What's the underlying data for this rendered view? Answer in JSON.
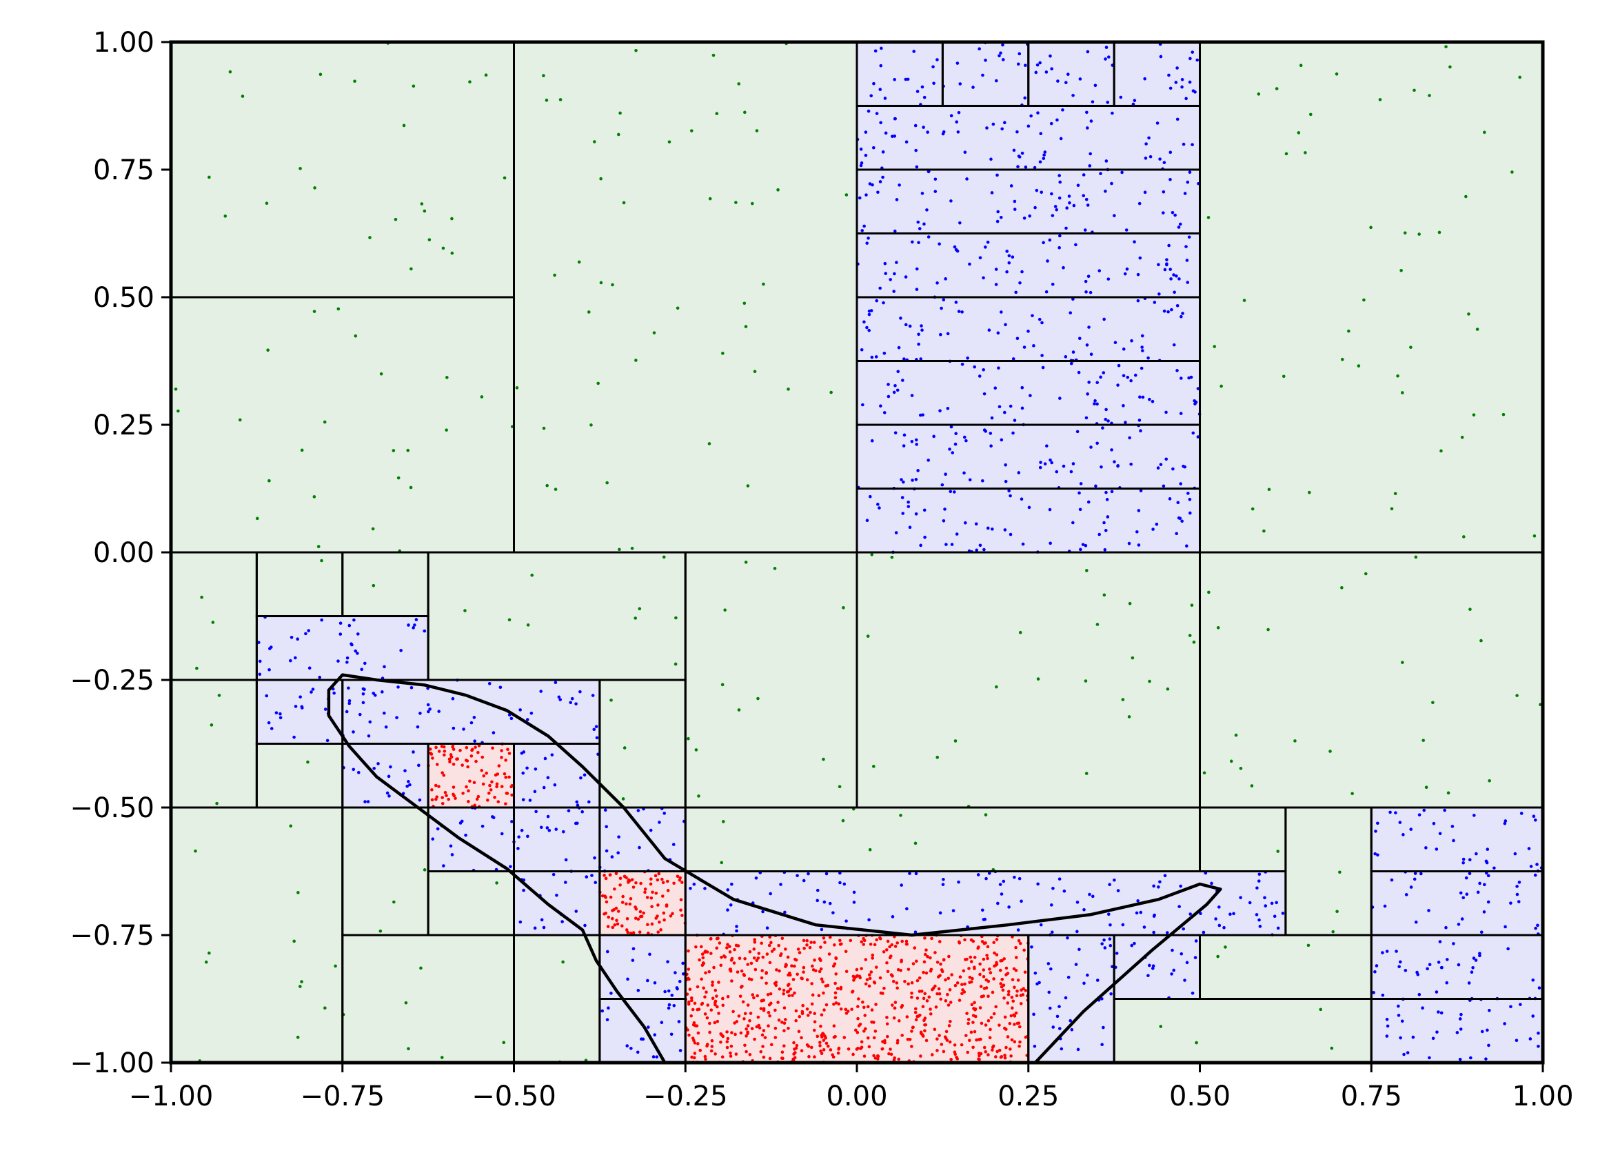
{
  "chart_data": {
    "type": "scatter",
    "title": "",
    "xlabel": "",
    "ylabel": "",
    "xlim": [
      -1.0,
      1.0
    ],
    "ylim": [
      -1.0,
      1.0
    ],
    "x_ticks": [
      "−1.00",
      "−0.75",
      "−0.50",
      "−0.25",
      "0.00",
      "0.25",
      "0.50",
      "0.75",
      "1.00"
    ],
    "y_ticks": [
      "−1.00",
      "−0.75",
      "−0.50",
      "−0.25",
      "0.00",
      "0.25",
      "0.50",
      "0.75",
      "1.00"
    ],
    "x_tick_values": [
      -1.0,
      -0.75,
      -0.5,
      -0.25,
      0.0,
      0.25,
      0.5,
      0.75,
      1.0
    ],
    "y_tick_values": [
      -1.0,
      -0.75,
      -0.5,
      -0.25,
      0.0,
      0.25,
      0.5,
      0.75,
      1.0
    ],
    "grid": false,
    "legend": "none",
    "colors": {
      "outside_fill": "#e4f0e4",
      "boundary_fill": "#e4e4fb",
      "inside_fill": "#fbe2e2",
      "outside_points": "#008000",
      "boundary_points": "#0000ff",
      "inside_points": "#ff0000",
      "cell_edges": "#000000",
      "contour": "#000000"
    },
    "cells": [
      {
        "x": [
          -1.0,
          -0.5
        ],
        "y": [
          0.5,
          1.0
        ],
        "state": "outside"
      },
      {
        "x": [
          -1.0,
          -0.5
        ],
        "y": [
          0.0,
          0.5
        ],
        "state": "outside"
      },
      {
        "x": [
          -0.5,
          0.0
        ],
        "y": [
          0.0,
          1.0
        ],
        "state": "outside"
      },
      {
        "x": [
          0.5,
          1.0
        ],
        "y": [
          0.0,
          1.0
        ],
        "state": "outside"
      },
      {
        "x": [
          0.0,
          0.5
        ],
        "y": [
          -0.5,
          0.0
        ],
        "state": "outside"
      },
      {
        "x": [
          0.5,
          1.0
        ],
        "y": [
          -0.5,
          0.0
        ],
        "state": "outside"
      },
      {
        "x": [
          -0.25,
          0.0
        ],
        "y": [
          -0.5,
          0.0
        ],
        "state": "outside"
      },
      {
        "x": [
          -1.0,
          -0.875
        ],
        "y": [
          -0.25,
          0.0
        ],
        "state": "outside"
      },
      {
        "x": [
          -1.0,
          -0.875
        ],
        "y": [
          -0.5,
          -0.25
        ],
        "state": "outside"
      },
      {
        "x": [
          -0.875,
          -0.75
        ],
        "y": [
          -0.125,
          0.0
        ],
        "state": "outside"
      },
      {
        "x": [
          -0.75,
          -0.625
        ],
        "y": [
          -0.125,
          0.0
        ],
        "state": "outside"
      },
      {
        "x": [
          -0.625,
          -0.25
        ],
        "y": [
          -0.25,
          0.0
        ],
        "state": "outside"
      },
      {
        "x": [
          -0.875,
          -0.75
        ],
        "y": [
          -0.5,
          -0.375
        ],
        "state": "outside"
      },
      {
        "x": [
          -0.375,
          -0.25
        ],
        "y": [
          -0.5,
          -0.25
        ],
        "state": "outside"
      },
      {
        "x": [
          -1.0,
          -0.75
        ],
        "y": [
          -1.0,
          -0.5
        ],
        "state": "outside"
      },
      {
        "x": [
          -0.75,
          -0.625
        ],
        "y": [
          -0.75,
          -0.5
        ],
        "state": "outside"
      },
      {
        "x": [
          -0.625,
          -0.5
        ],
        "y": [
          -0.75,
          -0.625
        ],
        "state": "outside"
      },
      {
        "x": [
          -0.75,
          -0.5
        ],
        "y": [
          -1.0,
          -0.75
        ],
        "state": "outside"
      },
      {
        "x": [
          -0.5,
          -0.375
        ],
        "y": [
          -1.0,
          -0.75
        ],
        "state": "outside"
      },
      {
        "x": [
          -0.25,
          0.5
        ],
        "y": [
          -0.625,
          -0.5
        ],
        "state": "outside"
      },
      {
        "x": [
          0.5,
          0.625
        ],
        "y": [
          -0.625,
          -0.5
        ],
        "state": "outside"
      },
      {
        "x": [
          0.625,
          0.75
        ],
        "y": [
          -0.75,
          -0.5
        ],
        "state": "outside"
      },
      {
        "x": [
          0.375,
          0.75
        ],
        "y": [
          -1.0,
          -0.875
        ],
        "state": "outside"
      },
      {
        "x": [
          0.5,
          0.75
        ],
        "y": [
          -0.875,
          -0.75
        ],
        "state": "outside"
      },
      {
        "x": [
          0.0,
          0.125
        ],
        "y": [
          0.875,
          1.0
        ],
        "state": "boundary"
      },
      {
        "x": [
          0.125,
          0.25
        ],
        "y": [
          0.875,
          1.0
        ],
        "state": "boundary"
      },
      {
        "x": [
          0.25,
          0.375
        ],
        "y": [
          0.875,
          1.0
        ],
        "state": "boundary"
      },
      {
        "x": [
          0.375,
          0.5
        ],
        "y": [
          0.875,
          1.0
        ],
        "state": "boundary"
      },
      {
        "x": [
          0.0,
          0.5
        ],
        "y": [
          0.75,
          0.875
        ],
        "state": "boundary"
      },
      {
        "x": [
          0.0,
          0.5
        ],
        "y": [
          0.625,
          0.75
        ],
        "state": "boundary"
      },
      {
        "x": [
          0.0,
          0.5
        ],
        "y": [
          0.5,
          0.625
        ],
        "state": "boundary"
      },
      {
        "x": [
          0.0,
          0.5
        ],
        "y": [
          0.375,
          0.5
        ],
        "state": "boundary"
      },
      {
        "x": [
          0.0,
          0.5
        ],
        "y": [
          0.25,
          0.375
        ],
        "state": "boundary"
      },
      {
        "x": [
          0.0,
          0.5
        ],
        "y": [
          0.125,
          0.25
        ],
        "state": "boundary"
      },
      {
        "x": [
          0.0,
          0.5
        ],
        "y": [
          0.0,
          0.125
        ],
        "state": "boundary"
      },
      {
        "x": [
          -0.875,
          -0.625
        ],
        "y": [
          -0.25,
          -0.125
        ],
        "state": "boundary"
      },
      {
        "x": [
          -0.875,
          -0.75
        ],
        "y": [
          -0.375,
          -0.25
        ],
        "state": "boundary"
      },
      {
        "x": [
          -0.75,
          -0.375
        ],
        "y": [
          -0.375,
          -0.25
        ],
        "state": "boundary"
      },
      {
        "x": [
          -0.75,
          -0.625
        ],
        "y": [
          -0.5,
          -0.375
        ],
        "state": "boundary"
      },
      {
        "x": [
          -0.5,
          -0.375
        ],
        "y": [
          -0.5,
          -0.375
        ],
        "state": "boundary"
      },
      {
        "x": [
          -0.625,
          -0.5
        ],
        "y": [
          -0.625,
          -0.5
        ],
        "state": "boundary"
      },
      {
        "x": [
          -0.5,
          -0.375
        ],
        "y": [
          -0.625,
          -0.5
        ],
        "state": "boundary"
      },
      {
        "x": [
          -0.375,
          -0.25
        ],
        "y": [
          -0.625,
          -0.5
        ],
        "state": "boundary"
      },
      {
        "x": [
          -0.5,
          -0.375
        ],
        "y": [
          -0.75,
          -0.625
        ],
        "state": "boundary"
      },
      {
        "x": [
          -0.25,
          0.625
        ],
        "y": [
          -0.75,
          -0.625
        ],
        "state": "boundary"
      },
      {
        "x": [
          -0.375,
          -0.25
        ],
        "y": [
          -0.875,
          -0.75
        ],
        "state": "boundary"
      },
      {
        "x": [
          -0.375,
          -0.25
        ],
        "y": [
          -1.0,
          -0.875
        ],
        "state": "boundary"
      },
      {
        "x": [
          0.25,
          0.375
        ],
        "y": [
          -1.0,
          -0.75
        ],
        "state": "boundary"
      },
      {
        "x": [
          0.375,
          0.5
        ],
        "y": [
          -0.875,
          -0.75
        ],
        "state": "boundary"
      },
      {
        "x": [
          0.75,
          1.0
        ],
        "y": [
          -0.625,
          -0.5
        ],
        "state": "boundary"
      },
      {
        "x": [
          0.75,
          1.0
        ],
        "y": [
          -0.75,
          -0.625
        ],
        "state": "boundary"
      },
      {
        "x": [
          0.75,
          1.0
        ],
        "y": [
          -0.875,
          -0.75
        ],
        "state": "boundary"
      },
      {
        "x": [
          0.75,
          1.0
        ],
        "y": [
          -1.0,
          -0.875
        ],
        "state": "boundary"
      },
      {
        "x": [
          -0.625,
          -0.5
        ],
        "y": [
          -0.5,
          -0.375
        ],
        "state": "inside"
      },
      {
        "x": [
          -0.375,
          -0.25
        ],
        "y": [
          -0.75,
          -0.625
        ],
        "state": "inside"
      },
      {
        "x": [
          -0.25,
          0.25
        ],
        "y": [
          -1.0,
          -0.75
        ],
        "state": "inside"
      }
    ],
    "contour": {
      "x": [
        -0.28,
        -0.31,
        -0.35,
        -0.38,
        -0.4,
        -0.45,
        -0.51,
        -0.58,
        -0.64,
        -0.7,
        -0.74,
        -0.77,
        -0.77,
        -0.75,
        -0.7,
        -0.63,
        -0.57,
        -0.51,
        -0.45,
        -0.4,
        -0.34,
        -0.28,
        -0.18,
        -0.06,
        0.08,
        0.22,
        0.34,
        0.44,
        0.5,
        0.53,
        0.51,
        0.43,
        0.33,
        0.26
      ],
      "y": [
        -1.0,
        -0.93,
        -0.86,
        -0.8,
        -0.74,
        -0.69,
        -0.62,
        -0.56,
        -0.5,
        -0.44,
        -0.38,
        -0.32,
        -0.27,
        -0.24,
        -0.25,
        -0.26,
        -0.28,
        -0.31,
        -0.36,
        -0.42,
        -0.5,
        -0.6,
        -0.68,
        -0.73,
        -0.75,
        -0.73,
        -0.71,
        -0.68,
        -0.65,
        -0.66,
        -0.69,
        -0.78,
        -0.9,
        -1.0
      ]
    },
    "points": {
      "outside": {
        "approx_count": 900,
        "fill": "outside"
      },
      "boundary": {
        "approx_count": 3300,
        "fill": "boundary"
      },
      "inside": {
        "approx_count": 2600,
        "fill": "inside"
      }
    }
  }
}
